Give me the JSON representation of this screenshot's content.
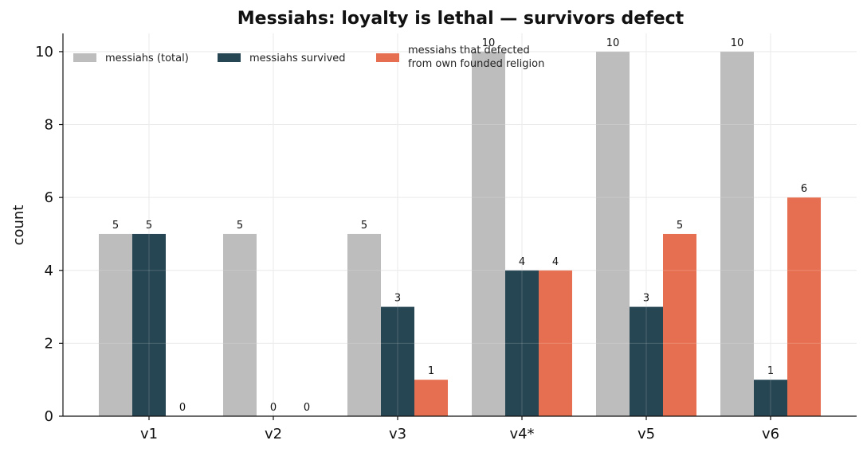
{
  "chart_data": {
    "type": "bar",
    "title": "Messiahs: loyalty is lethal — survivors defect",
    "xlabel": "",
    "ylabel": "count",
    "categories": [
      "v1",
      "v2",
      "v3",
      "v4*",
      "v5",
      "v6"
    ],
    "ylim": [
      0,
      10.5
    ],
    "yticks": [
      0,
      2,
      4,
      6,
      8,
      10
    ],
    "grid": true,
    "legend_position": "top-left",
    "series": [
      {
        "name": "messiahs (total)",
        "values": [
          5,
          5,
          5,
          10,
          10,
          10
        ],
        "color": "#bdbdbd"
      },
      {
        "name": "messiahs survived",
        "values": [
          5,
          0,
          3,
          4,
          3,
          1
        ],
        "color": "#264653"
      },
      {
        "name": "messiahs that defected\nfrom own founded religion",
        "values": [
          0,
          0,
          1,
          4,
          5,
          6
        ],
        "color": "#e76f51"
      }
    ]
  }
}
